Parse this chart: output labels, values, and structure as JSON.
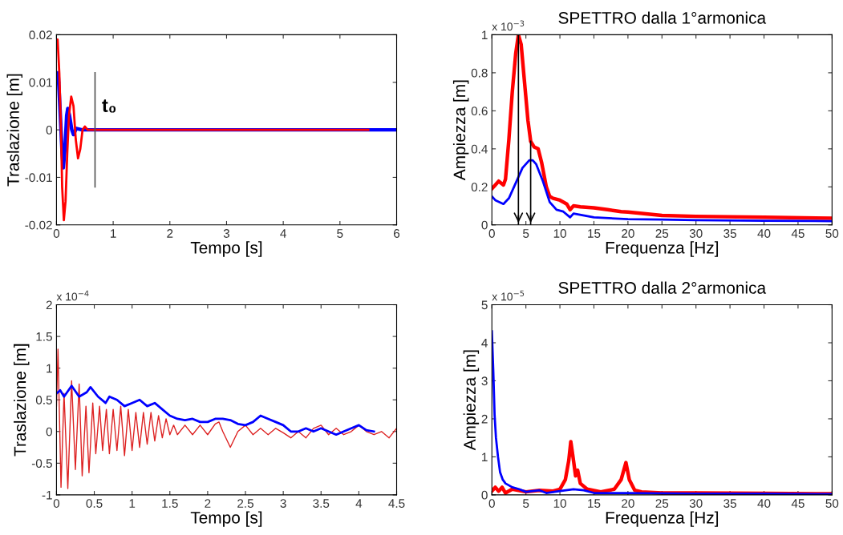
{
  "chart_data": [
    {
      "type": "line",
      "xlabel": "Tempo [s]",
      "ylabel": "Traslazione [m]",
      "xlim": [
        0,
        6
      ],
      "xticks": [
        0,
        1,
        2,
        3,
        4,
        5,
        6
      ],
      "ylim": [
        -0.02,
        0.02
      ],
      "yticks": [
        -0.02,
        -0.01,
        0,
        0.01,
        0.02
      ],
      "grid": false,
      "ref_lines": [
        {
          "axis": "x",
          "value": 0.68,
          "label": "t₀",
          "color": "#555555"
        }
      ],
      "series": [
        {
          "color": "#0000ff",
          "x": [
            0,
            0.03,
            0.06,
            0.1,
            0.12,
            0.15,
            0.18,
            0.2,
            0.23,
            0.27,
            0.3,
            0.35,
            0.45,
            1,
            2,
            3,
            4,
            5,
            6
          ],
          "values": [
            0.012,
            0.012,
            0.005,
            -0.005,
            -0.008,
            -0.004,
            0.003,
            0.0045,
            0.003,
            0.0,
            -0.001,
            0.0003,
            0,
            0,
            0,
            0,
            0,
            0,
            0
          ]
        },
        {
          "color": "#ff0000",
          "x": [
            0,
            0.02,
            0.05,
            0.08,
            0.1,
            0.13,
            0.16,
            0.19,
            0.22,
            0.26,
            0.3,
            0.34,
            0.38,
            0.42,
            0.46,
            0.5,
            0.55,
            1,
            2,
            3,
            4,
            5,
            5.5
          ],
          "values": [
            0.019,
            0.019,
            0.012,
            0.0,
            -0.012,
            -0.019,
            -0.015,
            -0.005,
            0.003,
            0.007,
            0.005,
            -0.002,
            -0.006,
            -0.004,
            0.0,
            0.0007,
            0,
            0,
            0,
            0,
            0,
            0,
            0
          ]
        }
      ]
    },
    {
      "type": "line",
      "title": "SPETTRO dalla 1°armonica",
      "xlabel": "Frequenza [Hz]",
      "ylabel": "Ampiezza [m]",
      "xlim": [
        0,
        50
      ],
      "xticks": [
        0,
        5,
        10,
        15,
        20,
        25,
        30,
        35,
        40,
        45,
        50
      ],
      "ylim": [
        0,
        1
      ],
      "yticks": [
        0,
        0.2,
        0.4,
        0.6,
        0.8,
        1
      ],
      "grid": false,
      "annotations": [
        "x 10$^{−3}$"
      ],
      "ref_lines": [
        {
          "axis": "x",
          "value": 3.9,
          "color": "#000000"
        },
        {
          "axis": "x",
          "value": 5.7,
          "color": "#000000"
        }
      ],
      "series": [
        {
          "color": "#ff0000",
          "x": [
            0,
            0.5,
            1,
            1.7,
            2,
            2.5,
            3,
            3.5,
            3.9,
            4.3,
            4.8,
            5.3,
            5.7,
            6.2,
            6.8,
            7.3,
            8,
            8.5,
            9,
            10,
            11,
            11.5,
            12,
            13,
            15,
            17,
            19,
            20,
            25,
            30,
            40,
            50
          ],
          "values": [
            0.19,
            0.21,
            0.23,
            0.21,
            0.24,
            0.45,
            0.7,
            0.9,
            1.0,
            0.95,
            0.75,
            0.55,
            0.44,
            0.41,
            0.4,
            0.33,
            0.2,
            0.15,
            0.14,
            0.13,
            0.11,
            0.08,
            0.1,
            0.095,
            0.09,
            0.08,
            0.07,
            0.068,
            0.05,
            0.045,
            0.04,
            0.035
          ]
        },
        {
          "color": "#0000ff",
          "x": [
            0,
            0.5,
            1.7,
            2.5,
            3.5,
            4.5,
            5.5,
            6,
            6.5,
            7.5,
            8.5,
            9.5,
            10.5,
            11.5,
            12,
            15,
            20,
            25,
            30,
            40,
            50
          ],
          "values": [
            0.15,
            0.13,
            0.11,
            0.14,
            0.22,
            0.3,
            0.34,
            0.34,
            0.32,
            0.23,
            0.12,
            0.08,
            0.07,
            0.04,
            0.06,
            0.04,
            0.03,
            0.028,
            0.025,
            0.022,
            0.02
          ]
        }
      ]
    },
    {
      "type": "line",
      "xlabel": "Tempo [s]",
      "ylabel": "Traslazione [m]",
      "xlim": [
        0,
        4.5
      ],
      "xticks": [
        0,
        0.5,
        1,
        1.5,
        2,
        2.5,
        3,
        3.5,
        4,
        4.5
      ],
      "ylim": [
        -1,
        2
      ],
      "yticks": [
        -1,
        -0.5,
        0,
        0.5,
        1,
        1.5,
        2
      ],
      "grid": false,
      "annotations": [
        "x 10$^{−4}$"
      ],
      "series": [
        {
          "color": "#dd2222",
          "x": [
            0,
            0.02,
            0.06,
            0.1,
            0.15,
            0.2,
            0.25,
            0.3,
            0.34,
            0.39,
            0.43,
            0.48,
            0.52,
            0.57,
            0.61,
            0.66,
            0.7,
            0.75,
            0.8,
            0.85,
            0.9,
            0.95,
            1.0,
            1.05,
            1.1,
            1.15,
            1.2,
            1.25,
            1.3,
            1.35,
            1.4,
            1.45,
            1.5,
            1.55,
            1.6,
            1.7,
            1.8,
            1.9,
            2.0,
            2.1,
            2.15,
            2.2,
            2.3,
            2.4,
            2.5,
            2.6,
            2.7,
            2.8,
            2.9,
            3.0,
            3.1,
            3.2,
            3.3,
            3.4,
            3.5,
            3.6,
            3.7,
            3.8,
            3.9,
            4.0,
            4.1,
            4.2,
            4.3,
            4.4,
            4.5
          ],
          "values": [
            0.4,
            1.3,
            -0.88,
            0.6,
            -0.9,
            0.8,
            -0.6,
            0.75,
            -0.7,
            0.4,
            -0.65,
            0.45,
            -0.35,
            0.4,
            -0.3,
            0.35,
            -0.35,
            0.35,
            -0.3,
            0.4,
            -0.38,
            0.35,
            -0.3,
            0.3,
            -0.25,
            0.3,
            -0.2,
            0.3,
            -0.15,
            0.25,
            -0.1,
            0.2,
            -0.05,
            0.1,
            -0.05,
            0.1,
            -0.05,
            0.1,
            -0.05,
            0.12,
            0.15,
            0.0,
            -0.25,
            0.0,
            0.1,
            -0.05,
            0.05,
            -0.05,
            0.05,
            -0.02,
            -0.1,
            0.0,
            -0.1,
            0.05,
            0.1,
            -0.05,
            0.05,
            -0.05,
            0.0,
            0.1,
            0.0,
            -0.05,
            0.0,
            -0.1,
            0.05
          ]
        },
        {
          "color": "#0000ff",
          "x": [
            0,
            0.05,
            0.1,
            0.2,
            0.3,
            0.4,
            0.45,
            0.55,
            0.65,
            0.7,
            0.8,
            0.9,
            1.0,
            1.1,
            1.2,
            1.3,
            1.4,
            1.5,
            1.6,
            1.7,
            1.8,
            1.9,
            2.0,
            2.1,
            2.2,
            2.3,
            2.4,
            2.5,
            2.6,
            2.7,
            2.8,
            2.9,
            3.0,
            3.1,
            3.2,
            3.3,
            3.4,
            3.5,
            3.6,
            3.7,
            3.8,
            3.9,
            4.0,
            4.1,
            4.2
          ],
          "values": [
            0.6,
            0.65,
            0.55,
            0.72,
            0.55,
            0.62,
            0.7,
            0.55,
            0.45,
            0.55,
            0.5,
            0.4,
            0.45,
            0.5,
            0.4,
            0.45,
            0.35,
            0.25,
            0.2,
            0.18,
            0.2,
            0.15,
            0.15,
            0.2,
            0.2,
            0.18,
            0.12,
            0.1,
            0.15,
            0.25,
            0.2,
            0.15,
            0.1,
            0.0,
            0.0,
            0.05,
            0.0,
            0.05,
            0.0,
            -0.05,
            0.0,
            0.05,
            0.1,
            0.02,
            0.0
          ]
        }
      ]
    },
    {
      "type": "line",
      "title": "SPETTRO dalla 2°armonica",
      "xlabel": "Frequenza [Hz]",
      "ylabel": "Ampiezza [m]",
      "xlim": [
        0,
        50
      ],
      "xticks": [
        0,
        5,
        10,
        15,
        20,
        25,
        30,
        35,
        40,
        45,
        50
      ],
      "ylim": [
        0,
        5
      ],
      "yticks": [
        0,
        1,
        2,
        3,
        4,
        5
      ],
      "grid": false,
      "annotations": [
        "x 10$^{−5}$"
      ],
      "series": [
        {
          "color": "#ff0000",
          "x": [
            0,
            0.5,
            1,
            1.5,
            2,
            3,
            5,
            7,
            9,
            10,
            10.8,
            11.3,
            11.6,
            12,
            12.3,
            12.6,
            13,
            14,
            16,
            18,
            19,
            19.7,
            20.2,
            21,
            22,
            25,
            30,
            40,
            50
          ],
          "values": [
            0.1,
            0.2,
            0.1,
            0.2,
            0.05,
            0.15,
            0.08,
            0.12,
            0.1,
            0.15,
            0.4,
            0.9,
            1.4,
            0.9,
            0.5,
            0.65,
            0.3,
            0.15,
            0.08,
            0.15,
            0.4,
            0.85,
            0.4,
            0.12,
            0.08,
            0.05,
            0.05,
            0.04,
            0.03
          ]
        },
        {
          "color": "#0000ff",
          "x": [
            0,
            0.2,
            0.4,
            0.6,
            0.9,
            1.2,
            1.6,
            2,
            3,
            4,
            5,
            7,
            8,
            10,
            12,
            13.5,
            15,
            20,
            30,
            40,
            50
          ],
          "values": [
            4.3,
            3.3,
            2.1,
            1.5,
            1.0,
            0.6,
            0.4,
            0.3,
            0.2,
            0.15,
            0.08,
            0.12,
            0.05,
            0.1,
            0.15,
            0.12,
            0.05,
            0.05,
            0.03,
            0.03,
            0.02
          ]
        }
      ]
    }
  ]
}
